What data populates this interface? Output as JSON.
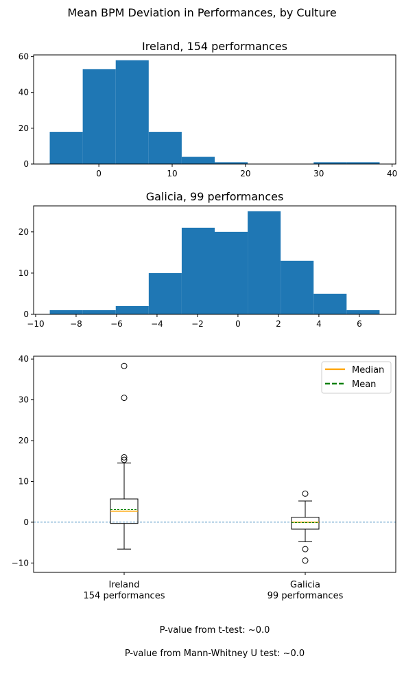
{
  "figure": {
    "suptitle": "Mean BPM Deviation in Performances, by Culture",
    "pvalue_ttest": "P-value from t-test: ~0.0",
    "pvalue_mwu": "P-value from Mann-Whitney U test: ~0.0"
  },
  "colors": {
    "bar": "#1f77b4",
    "median": "#ffa500",
    "mean": "#008000",
    "zero_line": "#1f77b4",
    "box": "#000000"
  },
  "chart_data": [
    {
      "type": "histogram",
      "title": "Ireland, 154 performances",
      "bin_edges": [
        -6.7,
        -2.2,
        2.3,
        6.8,
        11.3,
        15.8,
        20.3,
        24.8,
        29.3,
        33.8,
        38.3
      ],
      "counts": [
        18,
        53,
        58,
        18,
        4,
        1,
        0,
        0,
        1,
        1
      ],
      "xlim": [
        -8.9,
        40.5
      ],
      "ylim": [
        0,
        61
      ],
      "xticks": [
        0,
        10,
        20,
        30,
        40
      ],
      "yticks": [
        0,
        20,
        40,
        60
      ]
    },
    {
      "type": "histogram",
      "title": "Galicia, 99 performances",
      "bin_edges": [
        -9.3,
        -7.67,
        -6.04,
        -4.41,
        -2.78,
        -1.15,
        0.48,
        2.11,
        3.74,
        5.37,
        7.0
      ],
      "counts": [
        1,
        1,
        2,
        10,
        21,
        20,
        25,
        13,
        5,
        1
      ],
      "xlim": [
        -10.1,
        7.8
      ],
      "ylim": [
        0,
        26.3
      ],
      "xticks": [
        -10,
        -8,
        -6,
        -4,
        -2,
        0,
        2,
        4,
        6
      ],
      "yticks": [
        0,
        10,
        20
      ]
    },
    {
      "type": "boxplot",
      "ylim": [
        -12.3,
        40.7
      ],
      "yticks": [
        -10,
        0,
        10,
        20,
        30,
        40
      ],
      "zero_line": 0,
      "legend": {
        "placement": "top-right",
        "entries": [
          "Median",
          "Mean"
        ]
      },
      "groups": [
        {
          "label_line1": "Ireland",
          "label_line2": "154 performances",
          "whisker_low": -6.6,
          "q1": -0.3,
          "median": 2.7,
          "mean": 3.1,
          "q3": 5.7,
          "whisker_high": 14.5,
          "outliers": [
            15.3,
            15.9,
            30.5,
            38.3
          ]
        },
        {
          "label_line1": "Galicia",
          "label_line2": "99 performances",
          "whisker_low": -4.8,
          "q1": -1.7,
          "median": 0.0,
          "mean": -0.1,
          "q3": 1.2,
          "whisker_high": 5.2,
          "outliers": [
            7.0,
            -6.6,
            -9.4
          ]
        }
      ]
    }
  ]
}
